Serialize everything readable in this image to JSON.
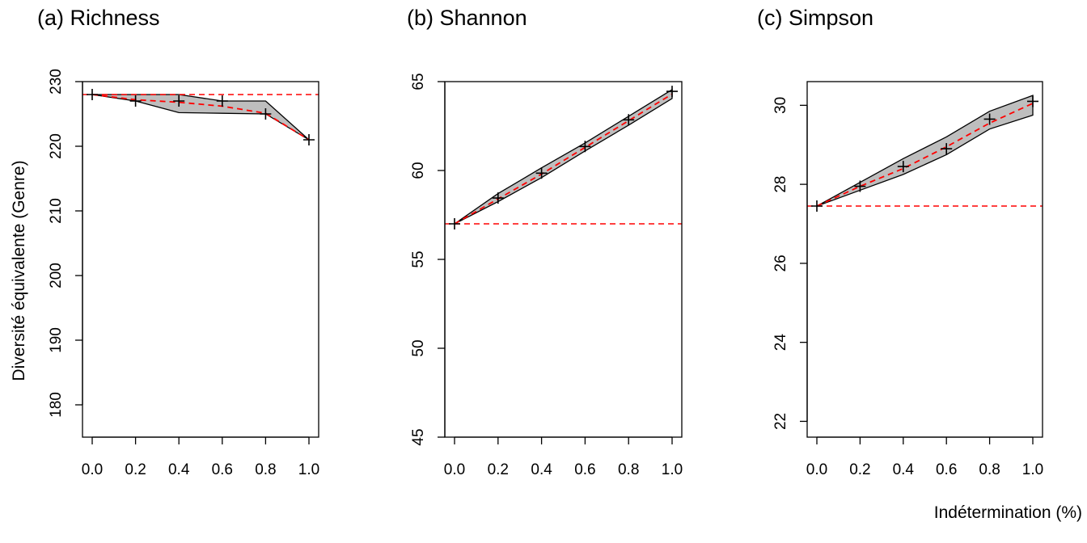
{
  "figure": {
    "ylabel": "Diversité équivalente (Genre)",
    "xlabel": "Indétermination (%)"
  },
  "chart_data": [
    {
      "type": "line",
      "title": "(a) Richness",
      "x": [
        0.0,
        0.2,
        0.4,
        0.6,
        0.8,
        1.0
      ],
      "xticks": [
        "0.0",
        "0.2",
        "0.4",
        "0.6",
        "0.8",
        "1.0"
      ],
      "ylim": [
        175,
        230
      ],
      "yticks": [
        180,
        190,
        200,
        210,
        220,
        230
      ],
      "reference": 228,
      "series": [
        {
          "role": "estimate",
          "values": [
            228,
            227,
            227,
            227,
            225,
            221
          ]
        },
        {
          "role": "mean",
          "values": [
            228,
            227.2,
            226.8,
            226.2,
            225.1,
            221
          ]
        },
        {
          "role": "upper",
          "values": [
            228,
            228,
            228,
            227,
            227,
            221
          ]
        },
        {
          "role": "lower",
          "values": [
            228,
            227,
            225.2,
            225.1,
            225,
            221
          ]
        }
      ],
      "colors": {
        "band": "#bebebe",
        "mean": "#ff0000",
        "reference": "#ff0000"
      }
    },
    {
      "type": "line",
      "title": "(b) Shannon",
      "x": [
        0.0,
        0.2,
        0.4,
        0.6,
        0.8,
        1.0
      ],
      "xticks": [
        "0.0",
        "0.2",
        "0.4",
        "0.6",
        "0.8",
        "1.0"
      ],
      "ylim": [
        45,
        65
      ],
      "yticks": [
        45,
        50,
        55,
        60,
        65
      ],
      "reference": 57.0,
      "series": [
        {
          "role": "estimate",
          "values": [
            57.0,
            58.45,
            59.85,
            61.35,
            62.85,
            64.45
          ]
        },
        {
          "role": "mean",
          "values": [
            57.0,
            58.4,
            59.8,
            61.3,
            62.8,
            64.3
          ]
        },
        {
          "role": "upper",
          "values": [
            57.0,
            58.7,
            60.15,
            61.55,
            63.05,
            64.55
          ]
        },
        {
          "role": "lower",
          "values": [
            57.0,
            58.25,
            59.6,
            61.1,
            62.55,
            64.05
          ]
        }
      ],
      "colors": {
        "band": "#bebebe",
        "mean": "#ff0000",
        "reference": "#ff0000"
      }
    },
    {
      "type": "line",
      "title": "(c) Simpson",
      "x": [
        0.0,
        0.2,
        0.4,
        0.6,
        0.8,
        1.0
      ],
      "xticks": [
        "0.0",
        "0.2",
        "0.4",
        "0.6",
        "0.8",
        "1.0"
      ],
      "ylim": [
        21.6,
        30.6
      ],
      "yticks": [
        22,
        24,
        26,
        28,
        30
      ],
      "reference": 27.45,
      "series": [
        {
          "role": "estimate",
          "values": [
            27.45,
            27.95,
            28.45,
            28.9,
            29.65,
            30.1
          ]
        },
        {
          "role": "mean",
          "values": [
            27.45,
            27.95,
            28.4,
            28.95,
            29.55,
            30.05
          ]
        },
        {
          "role": "upper",
          "values": [
            27.45,
            28.05,
            28.65,
            29.2,
            29.85,
            30.25
          ]
        },
        {
          "role": "lower",
          "values": [
            27.45,
            27.85,
            28.25,
            28.75,
            29.4,
            29.75
          ]
        }
      ],
      "colors": {
        "band": "#bebebe",
        "mean": "#ff0000",
        "reference": "#ff0000"
      }
    }
  ]
}
